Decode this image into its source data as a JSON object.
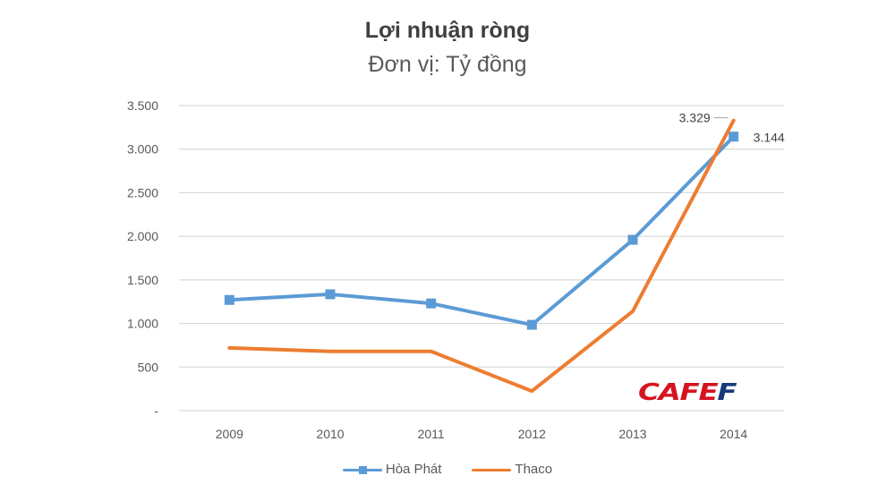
{
  "chart_data": {
    "type": "line",
    "title": "Lợi nhuận ròng",
    "subtitle": "Đơn vị: Tỷ đồng",
    "xlabel": "",
    "ylabel": "",
    "categories": [
      "2009",
      "2010",
      "2011",
      "2012",
      "2013",
      "2014"
    ],
    "series": [
      {
        "name": "Hòa Phát",
        "color": "#5b9bd5",
        "marker": "square",
        "values": [
          1270,
          1335,
          1230,
          985,
          1960,
          3144
        ]
      },
      {
        "name": "Thaco",
        "color": "#ed7d31",
        "marker": "none",
        "values": [
          720,
          680,
          680,
          225,
          1140,
          3329
        ]
      }
    ],
    "data_labels": [
      {
        "series": "Thaco",
        "category": "2014",
        "text": "3.329"
      },
      {
        "series": "Hòa Phát",
        "category": "2014",
        "text": "3.144"
      }
    ],
    "yticks": [
      {
        "value": 3500,
        "label": "3.500"
      },
      {
        "value": 3000,
        "label": "3.000"
      },
      {
        "value": 2500,
        "label": "2.500"
      },
      {
        "value": 2000,
        "label": "2.000"
      },
      {
        "value": 1500,
        "label": "1.500"
      },
      {
        "value": 1000,
        "label": "1.000"
      },
      {
        "value": 500,
        "label": "500"
      },
      {
        "value": 0,
        "label": "-"
      }
    ],
    "ylim": [
      0,
      3500
    ],
    "grid": true,
    "legend_position": "bottom"
  },
  "watermark": {
    "part1": "CAFE",
    "part2": "F"
  }
}
